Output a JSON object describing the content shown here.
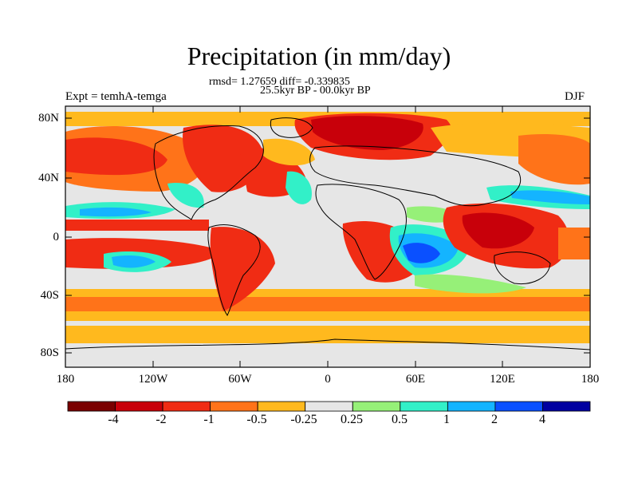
{
  "title": "Precipitation (in mm/day)",
  "stats_text": "rmsd= 1.27659 diff= -0.339835",
  "period_text": "25.5kyr BP - 00.0kyr BP",
  "experiment_text": "Expt = temhA-temga",
  "season": "DJF",
  "lat_ticks": [
    "80N",
    "40N",
    "0",
    "40S",
    "80S"
  ],
  "lon_ticks": [
    "180",
    "120W",
    "60W",
    "0",
    "60E",
    "120E",
    "180"
  ],
  "colorbar": {
    "colors": [
      "#7a0000",
      "#c8000a",
      "#f02c14",
      "#ff7319",
      "#ffb91e",
      "#e6e6e6",
      "#96f078",
      "#32f0c8",
      "#14b4ff",
      "#0a50ff",
      "#0000a0"
    ],
    "labels": [
      "-4",
      "-2",
      "-1",
      "-0.5",
      "-0.25",
      "0.25",
      "0.5",
      "1",
      "2",
      "4"
    ]
  },
  "map_colors": {
    "background": "#e6e6e6",
    "coast": "#000000"
  }
}
